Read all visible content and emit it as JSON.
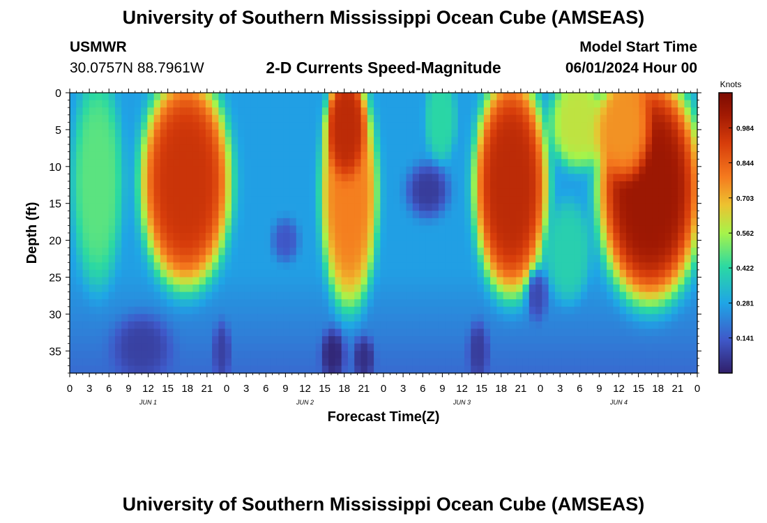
{
  "page": {
    "title_top": "University of Southern Mississippi Ocean Cube (AMSEAS)",
    "title_bottom": "University of Southern Mississippi Ocean Cube (AMSEAS)",
    "station": "USMWR",
    "coords": "30.0757N  88.7961W",
    "subtitle": "2-D Currents Speed-Magnitude",
    "model_label": "Model Start Time",
    "model_time": "06/01/2024 Hour 00"
  },
  "chart_data": {
    "type": "heatmap",
    "title": "2-D Currents Speed-Magnitude",
    "xlabel": "Forecast Time(Z)",
    "ylabel": "Depth (ft)",
    "x_range_hours": [
      0,
      96
    ],
    "y_range_ft": [
      0,
      38
    ],
    "x_tick_labels": [
      "0",
      "3",
      "6",
      "9",
      "12",
      "15",
      "18",
      "21",
      "0",
      "3",
      "6",
      "9",
      "12",
      "15",
      "18",
      "21",
      "0",
      "3",
      "6",
      "9",
      "12",
      "15",
      "18",
      "21",
      "0",
      "3",
      "6",
      "9",
      "12",
      "15",
      "18",
      "21",
      "0"
    ],
    "y_ticks": [
      "0",
      "5",
      "10",
      "15",
      "20",
      "25",
      "30",
      "35"
    ],
    "day_labels": [
      {
        "label": "JUN 1",
        "hour": 12
      },
      {
        "label": "JUN 2",
        "hour": 36
      },
      {
        "label": "JUN 3",
        "hour": 60
      },
      {
        "label": "JUN 4",
        "hour": 84
      }
    ],
    "colorbar": {
      "title": "Knots",
      "min": 0.0,
      "max": 1.125,
      "tick_labels": [
        "0.984",
        "0.844",
        "0.703",
        "0.562",
        "0.422",
        "0.281",
        "0.141"
      ],
      "tick_values": [
        0.984,
        0.844,
        0.703,
        0.562,
        0.422,
        0.281,
        0.141
      ]
    },
    "blobs": [
      {
        "t0": 1.5,
        "t1": 7.0,
        "d0": 0,
        "d1": 24,
        "v": 0.48
      },
      {
        "t0": 12.0,
        "t1": 23.5,
        "d0": 0,
        "d1": 24,
        "v": 0.95
      },
      {
        "t0": 39.5,
        "t1": 46.0,
        "d0": 0,
        "d1": 27,
        "v": 0.78
      },
      {
        "t0": 40.5,
        "t1": 44.0,
        "d0": 0,
        "d1": 9,
        "v": 0.98
      },
      {
        "t0": 55.5,
        "t1": 58.0,
        "d0": 0,
        "d1": 7,
        "v": 0.42
      },
      {
        "t0": 63.0,
        "t1": 72.0,
        "d0": 0,
        "d1": 25,
        "v": 0.98
      },
      {
        "t0": 74.5,
        "t1": 81.0,
        "d0": 0,
        "d1": 8,
        "v": 0.6
      },
      {
        "t0": 74.0,
        "t1": 78.5,
        "d0": 17,
        "d1": 26,
        "v": 0.4
      },
      {
        "t0": 82.0,
        "t1": 95.5,
        "d0": 0,
        "d1": 26,
        "v": 1.05
      },
      {
        "t0": 82.0,
        "t1": 87.5,
        "d0": 0,
        "d1": 9,
        "v": 0.75
      }
    ],
    "lows": [
      {
        "t0": 52.0,
        "t1": 57.5,
        "d0": 10.5,
        "d1": 16,
        "v": 0.07
      },
      {
        "t0": 31.5,
        "t1": 34.5,
        "d0": 18,
        "d1": 22,
        "v": 0.13
      },
      {
        "t0": 39.0,
        "t1": 41.5,
        "d0": 33,
        "d1": 38,
        "v": 0.02
      },
      {
        "t0": 44.0,
        "t1": 46.0,
        "d0": 34,
        "d1": 38,
        "v": 0.04
      },
      {
        "t0": 7.0,
        "t1": 15.0,
        "d0": 31,
        "d1": 38,
        "v": 0.08
      },
      {
        "t0": 61.5,
        "t1": 63.5,
        "d0": 32,
        "d1": 38,
        "v": 0.07
      },
      {
        "t0": 70.5,
        "t1": 72.5,
        "d0": 25,
        "d1": 30,
        "v": 0.1
      },
      {
        "t0": 22.5,
        "t1": 24.0,
        "d0": 32,
        "d1": 38,
        "v": 0.08
      }
    ]
  }
}
